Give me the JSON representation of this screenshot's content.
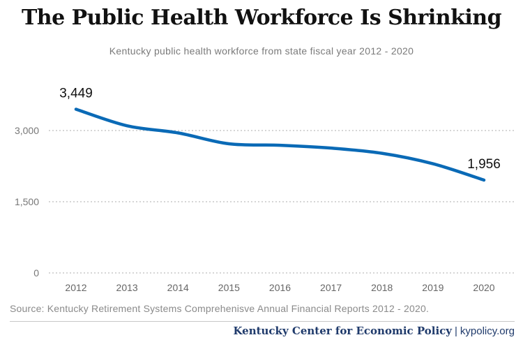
{
  "chart_data": {
    "type": "line",
    "title": "The Public Health Workforce Is Shrinking",
    "subtitle": "Kentucky public health workforce from state fiscal year 2012 - 2020",
    "x": [
      "2012",
      "2013",
      "2014",
      "2015",
      "2016",
      "2017",
      "2018",
      "2019",
      "2020"
    ],
    "series": [
      {
        "values": [
          3449,
          3100,
          2950,
          2720,
          2690,
          2630,
          2520,
          2300,
          1956
        ]
      }
    ],
    "data_labels": [
      "3,449",
      "1,956"
    ],
    "ylim": [
      0,
      3600
    ],
    "yticks": [
      0,
      1500,
      3000
    ],
    "ytick_labels": [
      "0",
      "1,500",
      "3,000"
    ],
    "grid": true,
    "line_color": "#0a6ab6"
  },
  "source": "Source: Kentucky Retirement Systems Comprehenisve Annual Financial Reports 2012 - 2020.",
  "footer": {
    "org": "Kentucky Center for Economic Policy",
    "separator": "|",
    "site": "kypolicy.org"
  }
}
